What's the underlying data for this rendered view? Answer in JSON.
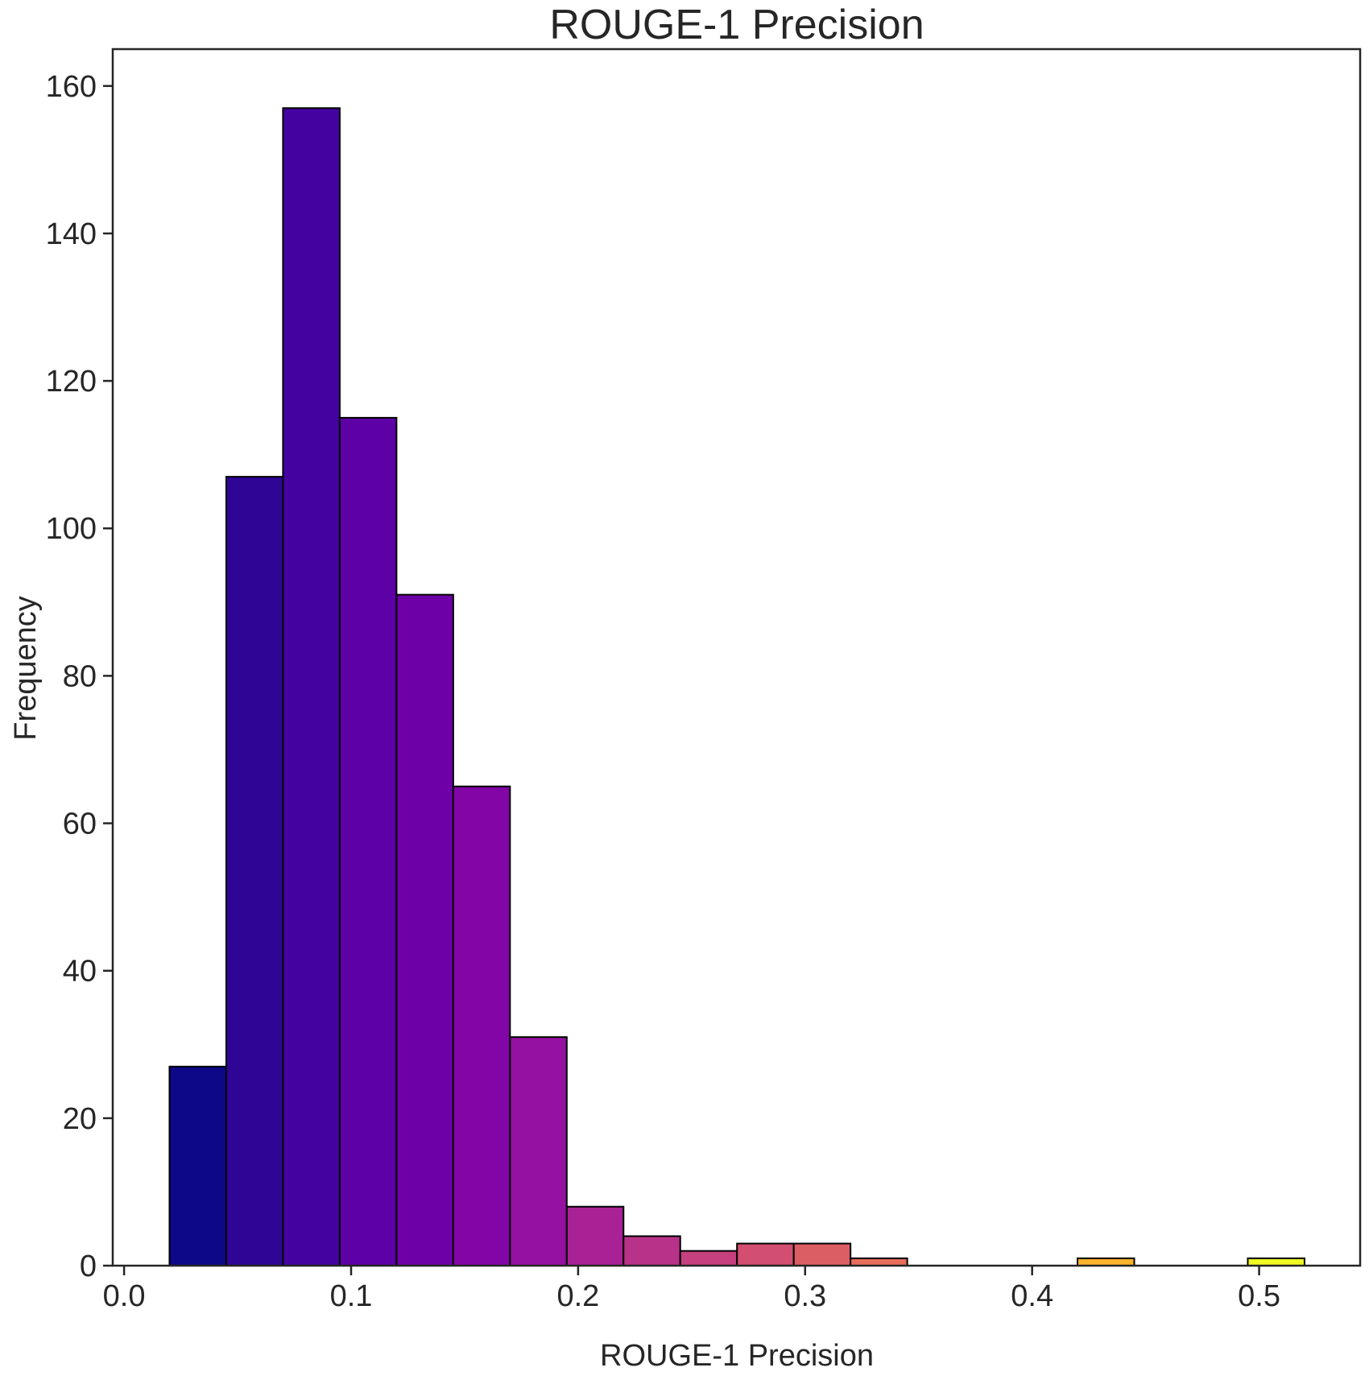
{
  "chart_data": {
    "type": "bar",
    "title": "ROUGE-1 Precision",
    "xlabel": "ROUGE-1 Precision",
    "ylabel": "Frequency",
    "xlim": [
      -0.005,
      0.5445
    ],
    "ylim": [
      0,
      165
    ],
    "xticks": [
      "0.0",
      "0.1",
      "0.2",
      "0.3",
      "0.4",
      "0.5"
    ],
    "yticks": [
      "0",
      "20",
      "40",
      "60",
      "80",
      "100",
      "120",
      "140",
      "160"
    ],
    "bin_edges": [
      0.02,
      0.045,
      0.07,
      0.095,
      0.12,
      0.145,
      0.17,
      0.195,
      0.22,
      0.245,
      0.27,
      0.295,
      0.32,
      0.345,
      0.37,
      0.395,
      0.42,
      0.445,
      0.47,
      0.495,
      0.52
    ],
    "values": [
      27,
      107,
      157,
      115,
      91,
      65,
      31,
      8,
      4,
      2,
      3,
      3,
      1,
      0,
      0,
      0,
      1,
      0,
      0,
      1
    ],
    "colors": [
      "#0d0887",
      "#2f0596",
      "#4403a0",
      "#5d01a6",
      "#6e00a8",
      "#8205a6",
      "#9511a1",
      "#a82296",
      "#b83289",
      "#c5407e",
      "#d24f71",
      "#dc5e65",
      "#e76e5b",
      "#ef7e4f",
      "#f68f44",
      "#fba238",
      "#fdb42f",
      "#fcc926",
      "#f6df23",
      "#f0f921"
    ],
    "grid": false,
    "legend": "none"
  }
}
